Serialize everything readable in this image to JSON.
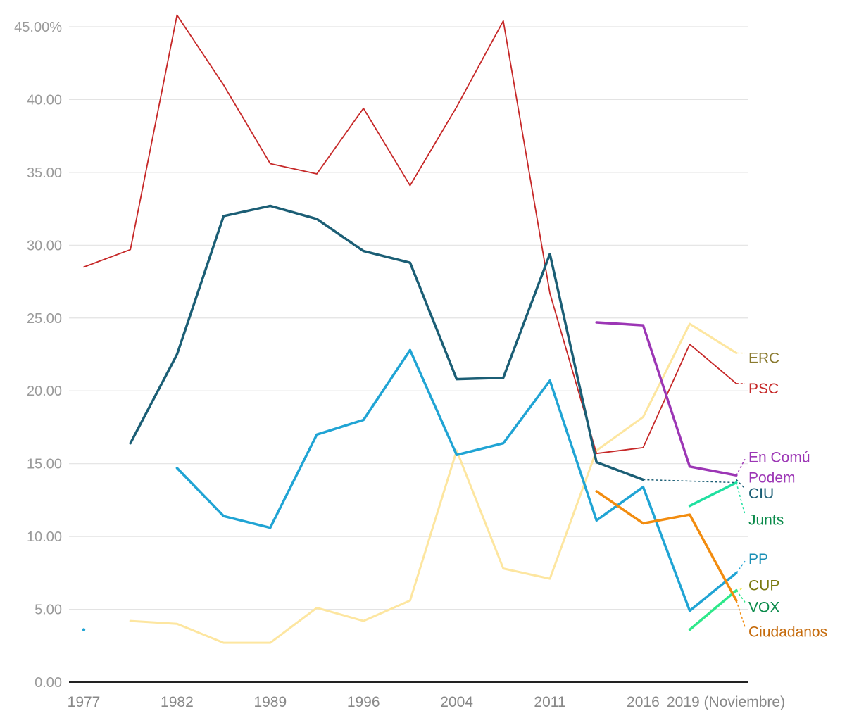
{
  "chart_data": {
    "type": "line",
    "title": "",
    "xlabel": "",
    "ylabel": "",
    "ylim": [
      0,
      45
    ],
    "x_tick_labels": [
      {
        "x": 0,
        "label": "1977"
      },
      {
        "x": 2,
        "label": "1982"
      },
      {
        "x": 4,
        "label": "1989"
      },
      {
        "x": 6,
        "label": "1996"
      },
      {
        "x": 8,
        "label": "2004"
      },
      {
        "x": 10,
        "label": "2011"
      },
      {
        "x": 12,
        "label": "2016"
      },
      {
        "x": 13,
        "label": "2019 (Noviembre)"
      }
    ],
    "y_ticks": [
      {
        "value": 45,
        "label": "45.00%"
      },
      {
        "value": 40,
        "label": "40.00"
      },
      {
        "value": 35,
        "label": "35.00"
      },
      {
        "value": 30,
        "label": "30.00"
      },
      {
        "value": 25,
        "label": "25.00"
      },
      {
        "value": 20,
        "label": "20.00"
      },
      {
        "value": 15,
        "label": "15.00"
      },
      {
        "value": 10,
        "label": "10.00"
      },
      {
        "value": 5,
        "label": "5.00"
      },
      {
        "value": 0,
        "label": "0.00"
      }
    ],
    "series": [
      {
        "name": "ERC",
        "color": "#fde6a0",
        "label_color": "#8a7a2f",
        "width": 3,
        "values": [
          null,
          4.2,
          4.0,
          2.7,
          2.7,
          5.1,
          4.2,
          5.6,
          15.9,
          7.8,
          7.1,
          15.9,
          18.2,
          24.6,
          22.6
        ]
      },
      {
        "name": "PSC",
        "color": "#c62828",
        "label_color": "#c62828",
        "width": 1.8,
        "values": [
          28.5,
          29.7,
          45.8,
          41.0,
          35.6,
          34.9,
          39.4,
          34.1,
          39.5,
          45.4,
          26.7,
          15.7,
          16.1,
          23.2,
          20.5
        ]
      },
      {
        "name": "En Comú Podem",
        "color": "#9c36b5",
        "label_color": "#9c36b5",
        "width": 3.5,
        "values": [
          null,
          null,
          null,
          null,
          null,
          null,
          null,
          null,
          null,
          null,
          null,
          24.7,
          24.5,
          14.8,
          14.2
        ]
      },
      {
        "name": "CIU",
        "color": "#1b5e75",
        "label_color": "#1b5e75",
        "width": 3.5,
        "values": [
          null,
          16.4,
          22.5,
          32.0,
          32.7,
          31.8,
          29.6,
          28.8,
          20.8,
          20.9,
          29.4,
          15.1,
          13.9,
          null,
          null
        ]
      },
      {
        "name": "Junts",
        "color": "#1fe0a0",
        "label_color": "#0a8a4a",
        "width": 3.5,
        "values": [
          null,
          null,
          null,
          null,
          null,
          null,
          null,
          null,
          null,
          null,
          null,
          null,
          null,
          12.1,
          13.7
        ]
      },
      {
        "name": "PP",
        "color": "#20a4d4",
        "label_color": "#1a8fb5",
        "width": 3.5,
        "values": [
          3.6,
          null,
          14.7,
          11.4,
          10.6,
          17.0,
          18.0,
          22.8,
          15.6,
          16.4,
          20.7,
          11.1,
          13.4,
          4.9,
          7.5
        ]
      },
      {
        "name": "CUP",
        "color": "#f0e84a",
        "label_color": "#7a7a10",
        "width": 3.5,
        "values": [
          null,
          null,
          null,
          null,
          null,
          null,
          null,
          null,
          null,
          null,
          null,
          null,
          null,
          null,
          null
        ]
      },
      {
        "name": "VOX",
        "color": "#2ee88a",
        "label_color": "#0a8a4a",
        "width": 3.5,
        "values": [
          null,
          null,
          null,
          null,
          null,
          null,
          null,
          null,
          null,
          null,
          null,
          null,
          null,
          3.6,
          6.3
        ]
      },
      {
        "name": "Ciudadanos",
        "color": "#f28c0f",
        "label_color": "#c56a0a",
        "width": 3.5,
        "values": [
          null,
          null,
          null,
          null,
          null,
          null,
          null,
          null,
          null,
          null,
          null,
          13.1,
          10.9,
          11.5,
          5.6
        ]
      }
    ],
    "ciu_extension": [
      13.9,
      13.7
    ],
    "end_labels": [
      {
        "series": "ERC",
        "text": "ERC",
        "y": 22.3
      },
      {
        "series": "PSC",
        "text": "PSC",
        "y": 20.2
      },
      {
        "series": "En Comú Podem",
        "text": "En Comú",
        "y": 15.5
      },
      {
        "series": "En Comú Podem",
        "text": "Podem",
        "y": 14.1
      },
      {
        "series": "CIU",
        "text": "CIU",
        "y": 13.0
      },
      {
        "series": "Junts",
        "text": "Junts",
        "y": 11.2
      },
      {
        "series": "PP",
        "text": "PP",
        "y": 8.5
      },
      {
        "series": "CUP",
        "text": "CUP",
        "y": 6.7
      },
      {
        "series": "VOX",
        "text": "VOX",
        "y": 5.2
      },
      {
        "series": "Ciudadanos",
        "text": "Ciudadanos",
        "y": 3.5
      }
    ],
    "grid": true,
    "legend": "direct-labels-right"
  }
}
